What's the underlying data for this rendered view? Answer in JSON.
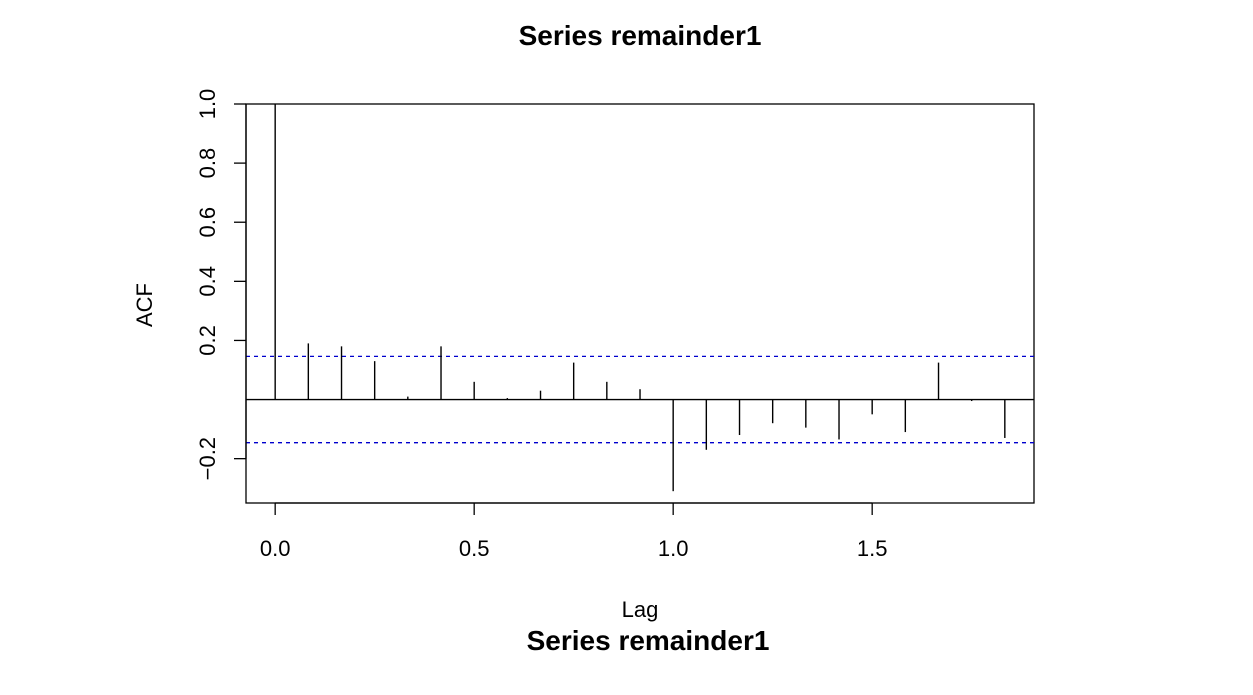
{
  "chart_data": {
    "type": "bar",
    "title": "Series  remainder1",
    "footer_title": "Series  remainder1",
    "xlabel": "Lag",
    "ylabel": "ACF",
    "xlim": [
      -0.0733,
      1.9066
    ],
    "ylim": [
      -0.35,
      1.0
    ],
    "x_ticks": [
      {
        "value": 0.0,
        "label": "0.0"
      },
      {
        "value": 0.5,
        "label": "0.5"
      },
      {
        "value": 1.0,
        "label": "1.0"
      },
      {
        "value": 1.5,
        "label": "1.5"
      }
    ],
    "y_ticks": [
      {
        "value": -0.2,
        "label": "−0.2"
      },
      {
        "value": 0.2,
        "label": "0.2"
      },
      {
        "value": 0.4,
        "label": "0.4"
      },
      {
        "value": 0.6,
        "label": "0.6"
      },
      {
        "value": 0.8,
        "label": "0.8"
      },
      {
        "value": 1.0,
        "label": "1.0"
      }
    ],
    "lags": [
      0.0,
      0.0833,
      0.1667,
      0.25,
      0.3333,
      0.4167,
      0.5,
      0.5833,
      0.6667,
      0.75,
      0.8333,
      0.9167,
      1.0,
      1.0833,
      1.1667,
      1.25,
      1.3333,
      1.4167,
      1.5,
      1.5833,
      1.6667,
      1.75,
      1.8333
    ],
    "acf": [
      1.0,
      0.19,
      0.18,
      0.13,
      0.01,
      0.18,
      0.06,
      0.005,
      0.03,
      0.125,
      0.06,
      0.035,
      -0.31,
      -0.17,
      -0.12,
      -0.08,
      -0.095,
      -0.135,
      -0.05,
      -0.11,
      0.125,
      -0.005,
      -0.13
    ],
    "conf_limit": 0.146,
    "colors": {
      "bars": "#000000",
      "conf_lines": "#0000cd",
      "zero_line": "#000000"
    },
    "grid": false
  }
}
